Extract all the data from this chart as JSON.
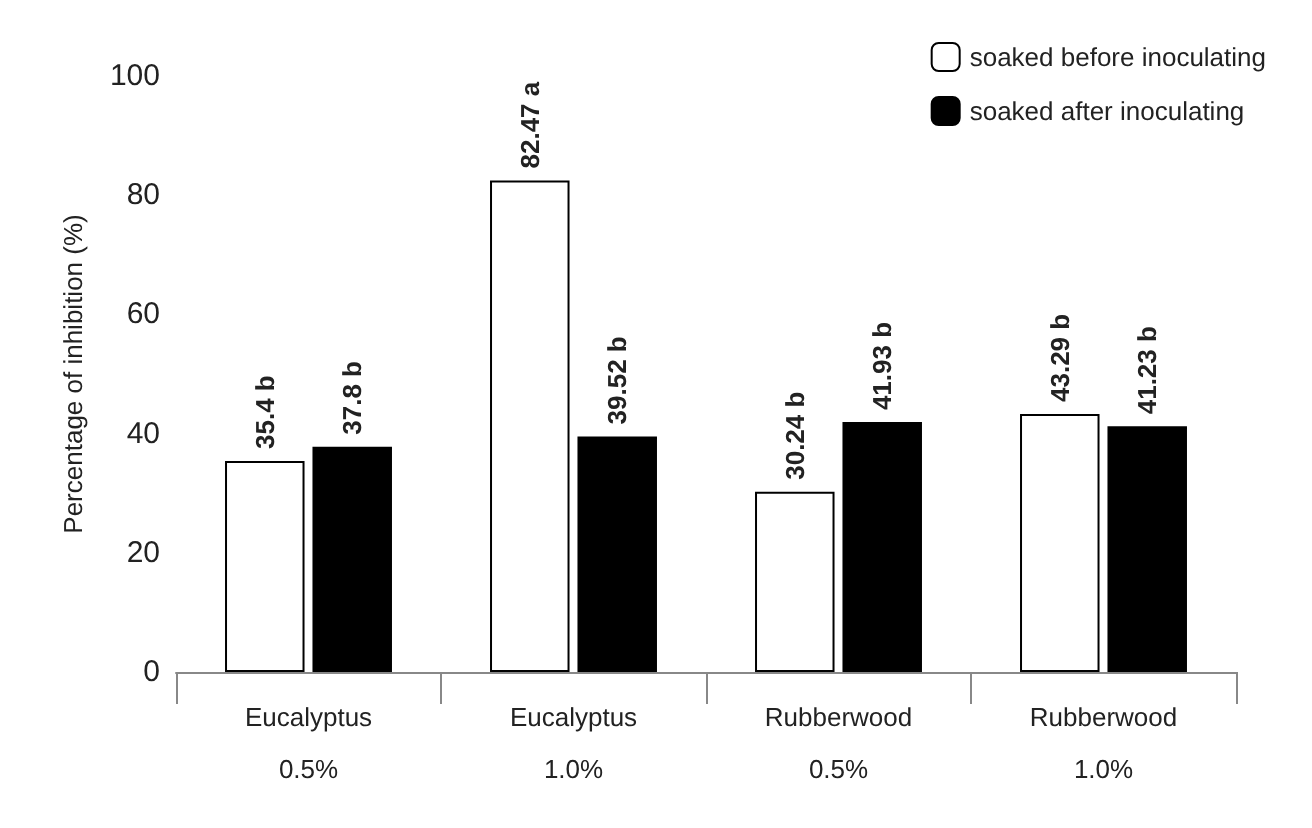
{
  "chart_data": {
    "type": "bar",
    "ylabel": "Percentage of inhibition (%)",
    "categories": [
      "Eucalyptus\n\n0.5%",
      "Eucalyptus\n\n1.0%",
      "Rubberwood\n\n0.5%",
      "Rubberwood\n\n1.0%"
    ],
    "series": [
      {
        "name": "soaked before inoculating",
        "color": "#ffffff",
        "values": [
          35.4,
          82.47,
          30.24,
          43.29
        ],
        "value_labels": [
          "35.4 b",
          "82.47 a",
          "30.24 b",
          "43.29 b"
        ]
      },
      {
        "name": "soaked after inoculating",
        "color": "#000000",
        "values": [
          37.8,
          39.52,
          41.93,
          41.23
        ],
        "value_labels": [
          "37.8 b",
          "39.52 b",
          "41.93 b",
          "41.23 b"
        ]
      }
    ],
    "ylim": [
      0,
      100
    ],
    "yticks": [
      0,
      20,
      40,
      60,
      80,
      100
    ],
    "legend": "top right",
    "grid": false
  }
}
